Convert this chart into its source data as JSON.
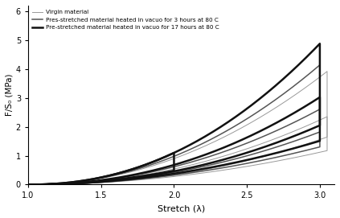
{
  "title": "",
  "xlabel": "Stretch (λ)",
  "ylabel": "F/S₀ (MPa)",
  "xlim": [
    1.0,
    3.1
  ],
  "ylim": [
    0,
    6.2
  ],
  "xticks": [
    1.0,
    1.5,
    2.0,
    2.5,
    3.0
  ],
  "yticks": [
    0,
    1,
    2,
    3,
    4,
    5,
    6
  ],
  "legend_labels": [
    "Virgin material",
    "Pres-stretched material heated in vacuo for 3 hours at 80 C",
    "Pre-stretched material heated in vacuo for 17 hours at 80 C"
  ],
  "colors": {
    "virgin": "#999999",
    "three_hours": "#555555",
    "seventeen_hours": "#111111"
  },
  "linewidths": {
    "virgin": 0.7,
    "three_hours": 1.1,
    "seventeen_hours": 1.8
  }
}
